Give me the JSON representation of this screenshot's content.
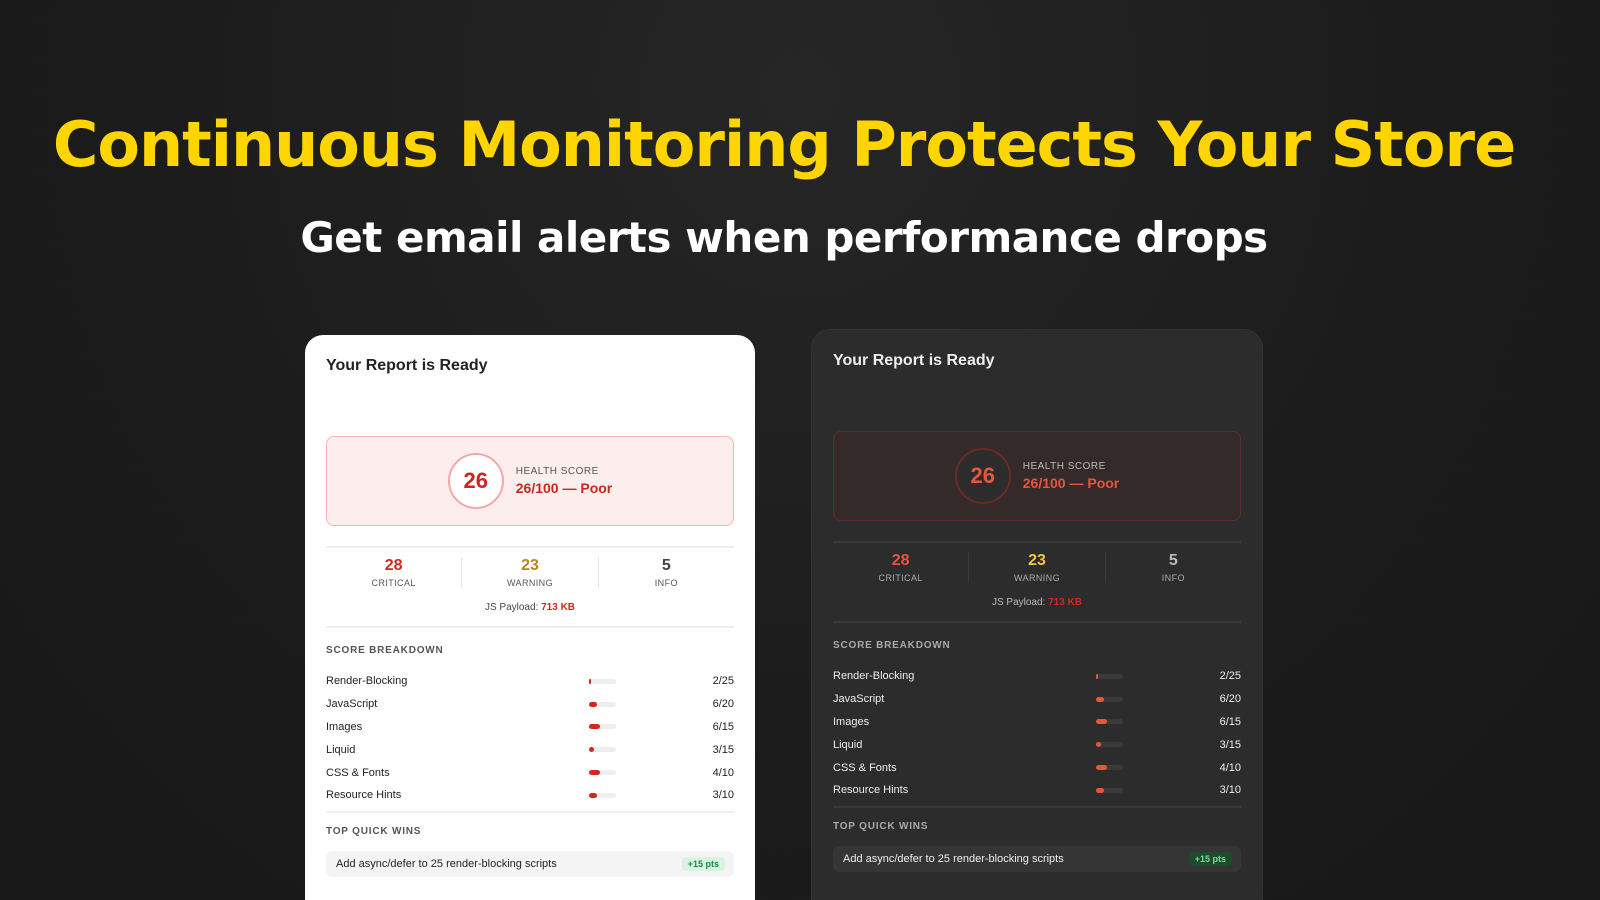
{
  "headline": "Continuous Monitoring Protects Your Store",
  "subheadline": "Get email alerts when performance drops",
  "colors": {
    "accent": "#ffd500",
    "critical": "#d0281e",
    "warning": "#b8891a",
    "warning_dark": "#f0c93c"
  },
  "report": {
    "title": "Your Report is Ready",
    "health_label": "HEALTH SCORE",
    "health_score": "26",
    "health_text": "26/100 — Poor",
    "stats": [
      {
        "value": "28",
        "label": "CRITICAL"
      },
      {
        "value": "23",
        "label": "WARNING"
      },
      {
        "value": "5",
        "label": "INFO"
      }
    ],
    "payload_label": "JS Payload:",
    "payload_value": "713 KB",
    "breakdown_title": "SCORE BREAKDOWN",
    "breakdown": [
      {
        "name": "Render-Blocking",
        "score": "2/25",
        "fraction": 0.08
      },
      {
        "name": "JavaScript",
        "score": "6/20",
        "fraction": 0.3
      },
      {
        "name": "Images",
        "score": "6/15",
        "fraction": 0.4
      },
      {
        "name": "Liquid",
        "score": "3/15",
        "fraction": 0.2
      },
      {
        "name": "CSS & Fonts",
        "score": "4/10",
        "fraction": 0.4
      },
      {
        "name": "Resource Hints",
        "score": "3/10",
        "fraction": 0.3
      }
    ],
    "quick_wins_title": "TOP QUICK WINS",
    "quick_wins": [
      {
        "text": "Add async/defer to 25 render-blocking scripts",
        "points": "+15 pts"
      }
    ]
  }
}
